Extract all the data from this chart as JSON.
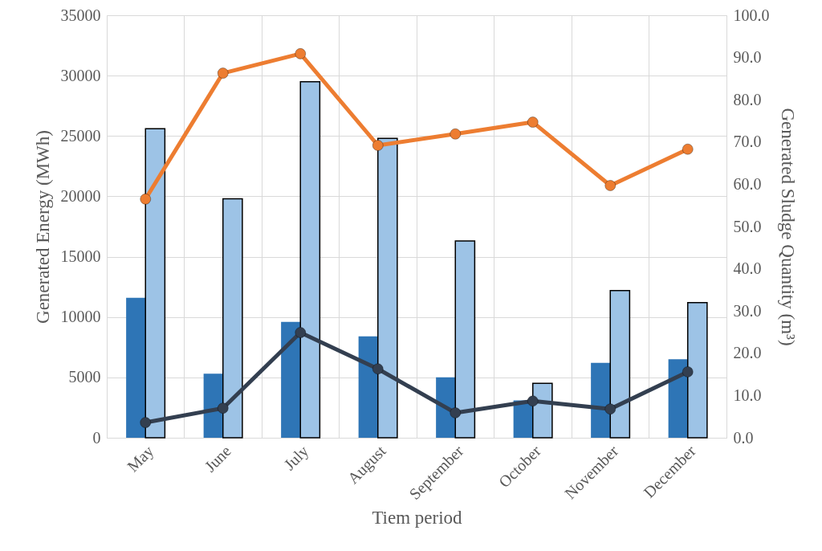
{
  "chart_data": {
    "type": "bar",
    "xlabel": "Tiem period",
    "ylabel": "Generated Energy (MWh)",
    "y2label": "Generated Sludge Quantity (m³)",
    "categories": [
      "May",
      "June",
      "July",
      "August",
      "September",
      "October",
      "November",
      "December"
    ],
    "series": [
      {
        "color": "#2e75b6",
        "values": [
          11600,
          5300,
          9600,
          8400,
          5000,
          3100,
          6200,
          6500
        ]
      },
      {
        "color": "#9dc3e6",
        "values": [
          25600,
          19800,
          29500,
          24800,
          16300,
          4500,
          12200,
          11200
        ]
      },
      {
        "type": "line",
        "axis": "y2",
        "color": "#ed7d31",
        "values": [
          56.5,
          86.3,
          90.9,
          69.2,
          71.9,
          74.7,
          59.7,
          68.3
        ]
      },
      {
        "type": "line",
        "axis": "y2",
        "color": "#333f50",
        "values": [
          3.6,
          7.0,
          24.9,
          16.3,
          5.9,
          8.7,
          6.8,
          15.6
        ]
      }
    ],
    "ylim": [
      0,
      35000
    ],
    "yticks": [
      0,
      5000,
      10000,
      15000,
      20000,
      25000,
      30000,
      35000
    ],
    "y2lim": [
      0,
      100
    ],
    "y2ticks": [
      {
        "value": 0,
        "label": "0.0"
      },
      {
        "value": 10,
        "label": "10.0"
      },
      {
        "value": 20,
        "label": "20.0"
      },
      {
        "value": 30,
        "label": "30.0"
      },
      {
        "value": 40,
        "label": "40.0"
      },
      {
        "value": 50,
        "label": "50.0"
      },
      {
        "value": 60,
        "label": "60.0"
      },
      {
        "value": 70,
        "label": "70.0"
      },
      {
        "value": 80,
        "label": "80.0"
      },
      {
        "value": 90,
        "label": "90.0"
      },
      {
        "value": 100,
        "label": "100.0"
      }
    ],
    "grid": true,
    "marker": "circle"
  }
}
